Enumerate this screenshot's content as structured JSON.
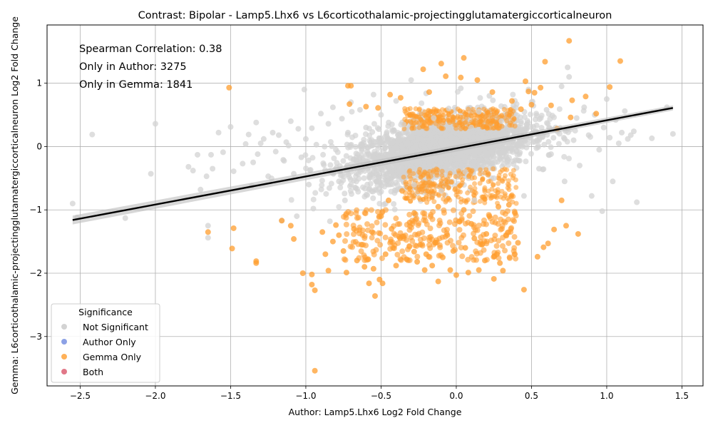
{
  "chart_data": {
    "type": "scatter",
    "title": "Contrast: Bipolar - Lamp5.Lhx6 vs L6corticothalamic-projectingglutamatergiccorticalneuron",
    "xlabel": "Author: Lamp5.Lhx6 Log2 Fold Change",
    "ylabel": "Gemma: L6corticothalamic-projectingglutamatergiccorticalneuron Log2 Fold Change",
    "xlim": [
      -2.72,
      1.64
    ],
    "ylim": [
      -3.78,
      1.92
    ],
    "x_ticks": [
      -2.5,
      -2.0,
      -1.5,
      -1.0,
      -0.5,
      0.0,
      0.5,
      1.0,
      1.5
    ],
    "x_tick_labels": [
      "−2.5",
      "−2.0",
      "−1.5",
      "−1.0",
      "−0.5",
      "0.0",
      "0.5",
      "1.0",
      "1.5"
    ],
    "y_ticks": [
      -3,
      -2,
      -1,
      0,
      1
    ],
    "y_tick_labels": [
      "−3",
      "−2",
      "−1",
      "0",
      "1"
    ],
    "grid": true,
    "annotations": [
      "Spearman Correlation: 0.38",
      "Only in Author: 3275",
      "Only in Gemma: 1841"
    ],
    "regression_line": {
      "x": [
        -2.55,
        1.44
      ],
      "y": [
        -1.16,
        0.61
      ],
      "ci_halfwidth": [
        0.07,
        0.04
      ]
    },
    "legend": {
      "title": "Significance",
      "placement": "lower-left",
      "entries": [
        {
          "label": "Not Significant",
          "color": "#d3d3d3"
        },
        {
          "label": "Author Only",
          "color": "#6f8ae0"
        },
        {
          "label": "Gemma Only",
          "color": "#ff9d2e"
        },
        {
          "label": "Both",
          "color": "#d9566a"
        }
      ]
    },
    "series": [
      {
        "name": "Not Significant",
        "color": "#d3d3d3",
        "points": [
          [
            -2.55,
            -0.9
          ],
          [
            -2.52,
            -1.12
          ],
          [
            -2.42,
            0.19
          ],
          [
            -2.2,
            -1.13
          ],
          [
            -2.03,
            -0.43
          ],
          [
            -2.0,
            0.36
          ],
          [
            -1.78,
            -0.32
          ],
          [
            -1.75,
            -0.38
          ],
          [
            -1.72,
            -0.13
          ],
          [
            -1.7,
            -0.68
          ],
          [
            -1.66,
            -0.47
          ],
          [
            -1.65,
            -1.25
          ],
          [
            -1.65,
            -1.44
          ],
          [
            -1.63,
            -0.13
          ],
          [
            -1.62,
            -0.35
          ],
          [
            -1.58,
            0.22
          ],
          [
            -1.55,
            -0.09
          ],
          [
            -1.5,
            0.31
          ],
          [
            -1.48,
            -0.39
          ],
          [
            -1.42,
            -0.27
          ],
          [
            -1.4,
            0.04
          ],
          [
            -1.38,
            0.19
          ],
          [
            -1.36,
            -0.62
          ],
          [
            -1.35,
            -0.25
          ],
          [
            -1.33,
            0.38
          ],
          [
            -1.32,
            -0.12
          ],
          [
            -1.3,
            0.05
          ],
          [
            -1.28,
            0.12
          ],
          [
            -1.25,
            -0.47
          ],
          [
            -1.22,
            0.22
          ],
          [
            -1.2,
            -0.08
          ],
          [
            -1.18,
            0.18
          ],
          [
            -1.16,
            -1.17
          ],
          [
            -1.15,
            -0.21
          ],
          [
            -1.13,
            0.07
          ],
          [
            -1.1,
            0.4
          ],
          [
            -1.08,
            -0.43
          ],
          [
            -1.06,
            -1.1
          ],
          [
            -1.05,
            0.28
          ],
          [
            -1.03,
            -0.17
          ],
          [
            -1.01,
            0.9
          ],
          [
            -1.0,
            0.12
          ],
          [
            -0.98,
            -0.6
          ],
          [
            -0.96,
            0.29
          ],
          [
            -0.95,
            -0.98
          ],
          [
            -0.93,
            0.03
          ],
          [
            -0.9,
            0.52
          ],
          [
            -0.88,
            -0.29
          ],
          [
            -0.85,
            0.36
          ],
          [
            -0.84,
            -1.18
          ],
          [
            -0.82,
            0.62
          ],
          [
            -0.8,
            -0.05
          ],
          [
            -0.78,
            -0.55
          ],
          [
            -0.76,
            0.44
          ],
          [
            -0.74,
            -0.85
          ],
          [
            -0.72,
            0.22
          ],
          [
            -0.7,
            0.7
          ],
          [
            -0.66,
            -0.32
          ],
          [
            -0.64,
            0.58
          ],
          [
            -0.6,
            0.3
          ],
          [
            -0.58,
            -0.68
          ],
          [
            -0.55,
            0.82
          ],
          [
            -0.52,
            -0.2
          ],
          [
            -0.5,
            0.5
          ],
          [
            -0.47,
            -0.9
          ],
          [
            -0.44,
            0.1
          ],
          [
            -0.4,
            0.72
          ],
          [
            -0.38,
            -0.38
          ],
          [
            -0.35,
            0.35
          ],
          [
            -0.3,
            1.05
          ],
          [
            -0.28,
            -0.6
          ],
          [
            -0.25,
            0.2
          ],
          [
            -0.2,
            0.84
          ],
          [
            -0.18,
            -0.25
          ],
          [
            -0.15,
            0.45
          ],
          [
            -0.1,
            -0.7
          ],
          [
            -0.05,
            0.6
          ],
          [
            0.0,
            0.05
          ],
          [
            0.03,
            0.92
          ],
          [
            0.06,
            -0.4
          ],
          [
            0.1,
            0.3
          ],
          [
            0.12,
            -0.85
          ],
          [
            0.15,
            0.55
          ],
          [
            0.2,
            0.12
          ],
          [
            0.22,
            0.8
          ],
          [
            0.25,
            -0.5
          ],
          [
            0.3,
            0.4
          ],
          [
            0.34,
            -0.2
          ],
          [
            0.38,
            0.65
          ],
          [
            0.42,
            0.05
          ],
          [
            0.45,
            -0.78
          ],
          [
            0.48,
            0.9
          ],
          [
            0.52,
            0.22
          ],
          [
            0.55,
            -0.35
          ],
          [
            0.6,
            0.58
          ],
          [
            0.63,
            -0.12
          ],
          [
            0.66,
            0.3
          ],
          [
            0.7,
            0.95
          ],
          [
            0.72,
            -0.55
          ],
          [
            0.74,
            1.25
          ],
          [
            0.75,
            1.1
          ],
          [
            0.78,
            0.1
          ],
          [
            0.8,
            0.45
          ],
          [
            0.82,
            -0.3
          ],
          [
            0.85,
            0.62
          ],
          [
            0.88,
            0.18
          ],
          [
            0.9,
            -0.78
          ],
          [
            0.92,
            0.5
          ],
          [
            0.95,
            -0.05
          ],
          [
            0.97,
            -1.02
          ],
          [
            0.98,
            0.3
          ],
          [
            1.0,
            0.75
          ],
          [
            1.02,
            0.14
          ],
          [
            1.04,
            -0.55
          ],
          [
            1.06,
            0.42
          ],
          [
            1.08,
            0.05
          ],
          [
            1.1,
            0.22
          ],
          [
            1.12,
            0.56
          ],
          [
            1.14,
            0.12
          ],
          [
            1.16,
            0.18
          ],
          [
            1.18,
            0.24
          ],
          [
            1.2,
            -0.88
          ],
          [
            1.3,
            0.13
          ],
          [
            1.4,
            0.62
          ],
          [
            1.44,
            0.2
          ]
        ]
      },
      {
        "name": "Gemma Only",
        "color": "#ff9d2e",
        "points": [
          [
            -1.65,
            -1.35
          ],
          [
            -1.51,
            0.93
          ],
          [
            -1.49,
            -1.61
          ],
          [
            -1.48,
            -1.29
          ],
          [
            -1.33,
            -1.81
          ],
          [
            -1.33,
            -1.84
          ],
          [
            -1.16,
            -1.17
          ],
          [
            -1.1,
            -1.25
          ],
          [
            -1.08,
            -1.46
          ],
          [
            -1.02,
            -2.0
          ],
          [
            -0.96,
            -2.02
          ],
          [
            -0.96,
            -2.18
          ],
          [
            -0.94,
            -2.27
          ],
          [
            -0.94,
            -3.54
          ],
          [
            -0.89,
            -1.35
          ],
          [
            -0.87,
            -1.7
          ],
          [
            -0.85,
            -1.96
          ],
          [
            -0.82,
            -1.5
          ],
          [
            -0.8,
            -1.24
          ],
          [
            -0.78,
            -1.4
          ],
          [
            -0.75,
            -1.65
          ],
          [
            -0.73,
            -1.99
          ],
          [
            -0.72,
            0.96
          ],
          [
            -0.71,
            0.67
          ],
          [
            -0.7,
            0.96
          ],
          [
            -0.68,
            -1.3
          ],
          [
            -0.66,
            -1.8
          ],
          [
            -0.63,
            -1.55
          ],
          [
            -0.61,
            -1.9
          ],
          [
            -0.6,
            0.63
          ],
          [
            -0.58,
            -2.16
          ],
          [
            -0.56,
            -1.35
          ],
          [
            -0.55,
            -1.93
          ],
          [
            -0.54,
            -2.36
          ],
          [
            -0.52,
            0.61
          ],
          [
            -0.51,
            -2.1
          ],
          [
            -0.49,
            -2.16
          ],
          [
            -0.47,
            -1.7
          ],
          [
            -0.44,
            0.82
          ],
          [
            -0.43,
            -1.3
          ],
          [
            -0.42,
            -1.6
          ],
          [
            -0.4,
            -1.88
          ],
          [
            -0.37,
            0.77
          ],
          [
            -0.35,
            -1.42
          ],
          [
            -0.33,
            -1.78
          ],
          [
            -0.31,
            -1.2
          ],
          [
            -0.28,
            -1.66
          ],
          [
            -0.26,
            -1.82
          ],
          [
            -0.24,
            -1.55
          ],
          [
            -0.22,
            1.22
          ],
          [
            -0.21,
            -1.95
          ],
          [
            -0.2,
            -1.7
          ],
          [
            -0.18,
            0.86
          ],
          [
            -0.16,
            -1.88
          ],
          [
            -0.14,
            -1.52
          ],
          [
            -0.12,
            -2.13
          ],
          [
            -0.1,
            1.31
          ],
          [
            -0.09,
            -1.75
          ],
          [
            -0.07,
            1.11
          ],
          [
            -0.06,
            -1.4
          ],
          [
            -0.04,
            -1.95
          ],
          [
            -0.02,
            -1.65
          ],
          [
            0.0,
            -2.03
          ],
          [
            0.02,
            -1.18
          ],
          [
            0.03,
            1.09
          ],
          [
            0.05,
            1.4
          ],
          [
            0.06,
            -1.6
          ],
          [
            0.08,
            -1.99
          ],
          [
            0.1,
            -1.22
          ],
          [
            0.12,
            -1.45
          ],
          [
            0.14,
            1.05
          ],
          [
            0.15,
            -1.95
          ],
          [
            0.17,
            -1.55
          ],
          [
            0.19,
            -1.8
          ],
          [
            0.2,
            -1.38
          ],
          [
            0.22,
            -1.1
          ],
          [
            0.24,
            0.86
          ],
          [
            0.25,
            -2.09
          ],
          [
            0.27,
            -1.7
          ],
          [
            0.29,
            -1.84
          ],
          [
            0.31,
            -1.96
          ],
          [
            0.33,
            -1.4
          ],
          [
            0.35,
            -0.92
          ],
          [
            0.37,
            0.72
          ],
          [
            0.39,
            -1.05
          ],
          [
            0.41,
            -1.52
          ],
          [
            0.43,
            0.59
          ],
          [
            0.45,
            -2.26
          ],
          [
            0.46,
            1.03
          ],
          [
            0.48,
            0.87
          ],
          [
            0.5,
            0.66
          ],
          [
            0.52,
            0.85
          ],
          [
            0.54,
            -1.74
          ],
          [
            0.56,
            0.93
          ],
          [
            0.58,
            -1.59
          ],
          [
            0.59,
            1.34
          ],
          [
            0.61,
            -1.53
          ],
          [
            0.63,
            0.65
          ],
          [
            0.65,
            -1.31
          ],
          [
            0.67,
            0.28
          ],
          [
            0.7,
            -0.85
          ],
          [
            0.73,
            -1.25
          ],
          [
            0.75,
            1.67
          ],
          [
            0.76,
            0.46
          ],
          [
            0.77,
            0.73
          ],
          [
            0.81,
            -1.38
          ],
          [
            0.86,
            0.79
          ],
          [
            0.93,
            0.52
          ],
          [
            1.02,
            0.94
          ],
          [
            1.09,
            1.35
          ],
          [
            -0.5,
            -1.1
          ],
          [
            -0.45,
            -0.85
          ],
          [
            -0.36,
            -0.7
          ],
          [
            -0.28,
            -1.05
          ],
          [
            -0.12,
            -0.95
          ],
          [
            0.05,
            -1.0
          ],
          [
            0.18,
            -0.8
          ],
          [
            0.28,
            -0.95
          ]
        ]
      },
      {
        "name": "Author Only",
        "color": "#6f8ae0",
        "points": []
      },
      {
        "name": "Both",
        "color": "#d9566a",
        "points": []
      }
    ]
  }
}
